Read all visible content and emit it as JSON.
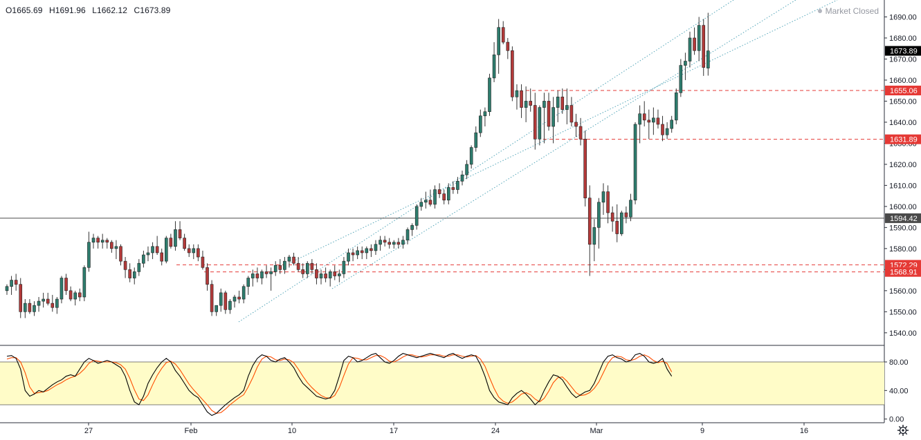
{
  "header": {
    "open": "O1665.69",
    "high": "H1691.96",
    "low": "L1662.12",
    "close": "C1673.89",
    "status": "Market Closed"
  },
  "colors": {
    "up": "#26a69a",
    "down": "#ef5350",
    "body_up": "#2e7d6e",
    "body_down": "#b33a3a",
    "level_line": "#e53935",
    "channel": "#3f9bb0",
    "stoch_k": "#000000",
    "stoch_d": "#ff4d00",
    "stoch_band": "#fffcc8",
    "last_price_tag": "#000000",
    "level_tag": "#e53935",
    "hline_tag": "#4a4a4a"
  },
  "price_axis": {
    "ticks": [
      "1540.00",
      "1550.00",
      "1560.00",
      "1570.00",
      "1580.00",
      "1590.00",
      "1600.00",
      "1610.00",
      "1620.00",
      "1630.00",
      "1640.00",
      "1650.00",
      "1660.00",
      "1670.00",
      "1680.00",
      "1690.00",
      "1700.00"
    ],
    "range": [
      1536,
      1700
    ]
  },
  "stoch_axis": {
    "ticks": [
      "0.00",
      "40.00",
      "80.00"
    ],
    "range": [
      0,
      100
    ],
    "band": [
      20,
      80
    ]
  },
  "time_axis": {
    "labels": [
      "27",
      "Feb",
      "10",
      "17",
      "24",
      "Mar",
      "9",
      "16"
    ]
  },
  "price_tags": {
    "last": "1673.89",
    "level_1655": "1655.06",
    "level_1631": "1631.89",
    "hline": "1594.42",
    "level_1572": "1572.29",
    "level_1568": "1568.91"
  },
  "chart_data": {
    "type": "candlestick",
    "description_series": "Daily OHLC with Stochastic oscillator",
    "levels": [
      {
        "price": 1655.06,
        "style": "dashed"
      },
      {
        "price": 1631.89,
        "style": "dashed"
      },
      {
        "price": 1594.42,
        "style": "solid"
      },
      {
        "price": 1572.29,
        "style": "dashed"
      },
      {
        "price": 1568.91,
        "style": "dashed"
      }
    ],
    "candles": [
      [
        1560,
        1563,
        1558,
        1562
      ],
      [
        1562,
        1567,
        1558,
        1565
      ],
      [
        1565,
        1568,
        1560,
        1563
      ],
      [
        1563,
        1566,
        1547,
        1550
      ],
      [
        1550,
        1556,
        1547,
        1554
      ],
      [
        1554,
        1556,
        1549,
        1550
      ],
      [
        1550,
        1555,
        1548,
        1553
      ],
      [
        1553,
        1557,
        1550,
        1555
      ],
      [
        1555,
        1559,
        1552,
        1556
      ],
      [
        1556,
        1559,
        1553,
        1554
      ],
      [
        1554,
        1558,
        1550,
        1552
      ],
      [
        1552,
        1557,
        1549,
        1556
      ],
      [
        1556,
        1567,
        1554,
        1566
      ],
      [
        1566,
        1568,
        1558,
        1560
      ],
      [
        1560,
        1562,
        1555,
        1556
      ],
      [
        1556,
        1560,
        1553,
        1559
      ],
      [
        1559,
        1561,
        1555,
        1557
      ],
      [
        1557,
        1572,
        1555,
        1571
      ],
      [
        1571,
        1588,
        1569,
        1583
      ],
      [
        1583,
        1587,
        1580,
        1585
      ],
      [
        1585,
        1586,
        1580,
        1583
      ],
      [
        1583,
        1587,
        1580,
        1584
      ],
      [
        1584,
        1585,
        1580,
        1583
      ],
      [
        1583,
        1584,
        1578,
        1580
      ],
      [
        1580,
        1584,
        1575,
        1581
      ],
      [
        1581,
        1582,
        1572,
        1574
      ],
      [
        1574,
        1576,
        1566,
        1570
      ],
      [
        1570,
        1573,
        1564,
        1566
      ],
      [
        1566,
        1571,
        1563,
        1569
      ],
      [
        1569,
        1575,
        1567,
        1573
      ],
      [
        1573,
        1579,
        1571,
        1577
      ],
      [
        1577,
        1581,
        1574,
        1578
      ],
      [
        1578,
        1583,
        1575,
        1581
      ],
      [
        1581,
        1586,
        1577,
        1578
      ],
      [
        1578,
        1580,
        1572,
        1574
      ],
      [
        1574,
        1586,
        1573,
        1585
      ],
      [
        1585,
        1587,
        1580,
        1581
      ],
      [
        1581,
        1593,
        1579,
        1589
      ],
      [
        1589,
        1593,
        1584,
        1585
      ],
      [
        1585,
        1587,
        1579,
        1580
      ],
      [
        1580,
        1582,
        1576,
        1578
      ],
      [
        1578,
        1582,
        1575,
        1580
      ],
      [
        1580,
        1582,
        1574,
        1576
      ],
      [
        1576,
        1579,
        1570,
        1571
      ],
      [
        1571,
        1573,
        1560,
        1563
      ],
      [
        1563,
        1565,
        1548,
        1550
      ],
      [
        1550,
        1553,
        1548,
        1553
      ],
      [
        1553,
        1561,
        1550,
        1559
      ],
      [
        1559,
        1560,
        1549,
        1551
      ],
      [
        1551,
        1556,
        1549,
        1555
      ],
      [
        1555,
        1558,
        1552,
        1557
      ],
      [
        1557,
        1560,
        1554,
        1556
      ],
      [
        1556,
        1563,
        1554,
        1562
      ],
      [
        1562,
        1567,
        1558,
        1566
      ],
      [
        1566,
        1570,
        1562,
        1568
      ],
      [
        1568,
        1571,
        1564,
        1566
      ],
      [
        1566,
        1570,
        1563,
        1569
      ],
      [
        1569,
        1572,
        1566,
        1568
      ],
      [
        1568,
        1571,
        1560,
        1569
      ],
      [
        1569,
        1574,
        1567,
        1572
      ],
      [
        1572,
        1575,
        1568,
        1570
      ],
      [
        1570,
        1576,
        1568,
        1574
      ],
      [
        1574,
        1577,
        1571,
        1576
      ],
      [
        1576,
        1578,
        1572,
        1573
      ],
      [
        1573,
        1576,
        1569,
        1570
      ],
      [
        1570,
        1573,
        1566,
        1568
      ],
      [
        1568,
        1574,
        1566,
        1573
      ],
      [
        1573,
        1575,
        1568,
        1570
      ],
      [
        1570,
        1573,
        1563,
        1566
      ],
      [
        1566,
        1570,
        1563,
        1568
      ],
      [
        1568,
        1571,
        1564,
        1566
      ],
      [
        1566,
        1570,
        1562,
        1569
      ],
      [
        1569,
        1572,
        1565,
        1567
      ],
      [
        1567,
        1570,
        1564,
        1568
      ],
      [
        1568,
        1576,
        1566,
        1574
      ],
      [
        1574,
        1580,
        1572,
        1578
      ],
      [
        1578,
        1580,
        1574,
        1577
      ],
      [
        1577,
        1581,
        1575,
        1579
      ],
      [
        1579,
        1581,
        1575,
        1578
      ],
      [
        1578,
        1581,
        1575,
        1580
      ],
      [
        1580,
        1582,
        1576,
        1579
      ],
      [
        1579,
        1584,
        1577,
        1582
      ],
      [
        1582,
        1586,
        1579,
        1584
      ],
      [
        1584,
        1586,
        1581,
        1583
      ],
      [
        1583,
        1585,
        1580,
        1582
      ],
      [
        1582,
        1584,
        1580,
        1583
      ],
      [
        1583,
        1585,
        1580,
        1582
      ],
      [
        1582,
        1586,
        1580,
        1584
      ],
      [
        1584,
        1590,
        1582,
        1589
      ],
      [
        1589,
        1592,
        1586,
        1591
      ],
      [
        1591,
        1601,
        1589,
        1600
      ],
      [
        1600,
        1604,
        1598,
        1602
      ],
      [
        1602,
        1607,
        1599,
        1603
      ],
      [
        1603,
        1608,
        1600,
        1601
      ],
      [
        1601,
        1610,
        1599,
        1608
      ],
      [
        1608,
        1611,
        1604,
        1606
      ],
      [
        1606,
        1608,
        1601,
        1603
      ],
      [
        1603,
        1611,
        1601,
        1609
      ],
      [
        1609,
        1612,
        1606,
        1608
      ],
      [
        1608,
        1614,
        1606,
        1612
      ],
      [
        1612,
        1617,
        1610,
        1615
      ],
      [
        1615,
        1622,
        1613,
        1620
      ],
      [
        1620,
        1629,
        1618,
        1628
      ],
      [
        1628,
        1638,
        1626,
        1635
      ],
      [
        1635,
        1646,
        1633,
        1643
      ],
      [
        1643,
        1647,
        1638,
        1645
      ],
      [
        1645,
        1663,
        1643,
        1661
      ],
      [
        1661,
        1678,
        1659,
        1672
      ],
      [
        1672,
        1689,
        1663,
        1685
      ],
      [
        1685,
        1688,
        1677,
        1678
      ],
      [
        1678,
        1680,
        1670,
        1674
      ],
      [
        1674,
        1676,
        1650,
        1652
      ],
      [
        1652,
        1658,
        1646,
        1655
      ],
      [
        1655,
        1658,
        1642,
        1647
      ],
      [
        1647,
        1657,
        1640,
        1650
      ],
      [
        1650,
        1656,
        1645,
        1648
      ],
      [
        1648,
        1654,
        1627,
        1632
      ],
      [
        1632,
        1648,
        1629,
        1647
      ],
      [
        1647,
        1654,
        1630,
        1650
      ],
      [
        1650,
        1654,
        1636,
        1638
      ],
      [
        1638,
        1652,
        1630,
        1647
      ],
      [
        1647,
        1655,
        1640,
        1652
      ],
      [
        1652,
        1656,
        1644,
        1646
      ],
      [
        1646,
        1656,
        1639,
        1648
      ],
      [
        1648,
        1652,
        1638,
        1640
      ],
      [
        1640,
        1644,
        1633,
        1638
      ],
      [
        1638,
        1642,
        1629,
        1632
      ],
      [
        1632,
        1636,
        1600,
        1604
      ],
      [
        1604,
        1610,
        1567,
        1582
      ],
      [
        1582,
        1594,
        1574,
        1590
      ],
      [
        1590,
        1604,
        1580,
        1602
      ],
      [
        1602,
        1611,
        1596,
        1607
      ],
      [
        1607,
        1610,
        1592,
        1597
      ],
      [
        1597,
        1600,
        1588,
        1593
      ],
      [
        1593,
        1601,
        1583,
        1587
      ],
      [
        1587,
        1598,
        1586,
        1597
      ],
      [
        1597,
        1600,
        1592,
        1595
      ],
      [
        1595,
        1606,
        1593,
        1603
      ],
      [
        1603,
        1640,
        1601,
        1639
      ],
      [
        1639,
        1648,
        1630,
        1644
      ],
      [
        1644,
        1650,
        1638,
        1641
      ],
      [
        1641,
        1646,
        1632,
        1640
      ],
      [
        1640,
        1647,
        1634,
        1642
      ],
      [
        1642,
        1646,
        1637,
        1639
      ],
      [
        1639,
        1643,
        1631,
        1634
      ],
      [
        1634,
        1640,
        1632,
        1637
      ],
      [
        1637,
        1643,
        1635,
        1641
      ],
      [
        1641,
        1656,
        1639,
        1654
      ],
      [
        1654,
        1670,
        1652,
        1667
      ],
      [
        1667,
        1673,
        1660,
        1669
      ],
      [
        1669,
        1683,
        1666,
        1680
      ],
      [
        1680,
        1685,
        1672,
        1674
      ],
      [
        1674,
        1690,
        1669,
        1686
      ],
      [
        1686,
        1689,
        1662,
        1666
      ],
      [
        1665.69,
        1691.96,
        1662.12,
        1673.89
      ]
    ],
    "stochastic": {
      "k": [
        88,
        89,
        85,
        70,
        40,
        32,
        35,
        40,
        38,
        43,
        48,
        52,
        55,
        60,
        62,
        60,
        70,
        80,
        85,
        82,
        78,
        80,
        82,
        80,
        76,
        72,
        60,
        40,
        24,
        20,
        32,
        50,
        62,
        72,
        80,
        85,
        80,
        68,
        60,
        50,
        40,
        34,
        30,
        20,
        10,
        5,
        8,
        14,
        20,
        25,
        30,
        34,
        40,
        60,
        75,
        85,
        90,
        88,
        82,
        80,
        84,
        86,
        80,
        72,
        60,
        50,
        44,
        38,
        32,
        30,
        28,
        30,
        40,
        60,
        82,
        88,
        86,
        80,
        82,
        86,
        90,
        92,
        86,
        80,
        78,
        82,
        88,
        92,
        90,
        88,
        86,
        88,
        90,
        92,
        90,
        88,
        86,
        90,
        92,
        88,
        85,
        88,
        90,
        88,
        76,
        60,
        40,
        30,
        24,
        22,
        20,
        30,
        36,
        40,
        35,
        28,
        20,
        26,
        40,
        52,
        62,
        60,
        55,
        45,
        36,
        30,
        34,
        38,
        40,
        50,
        65,
        80,
        88,
        90,
        86,
        84,
        80,
        82,
        90,
        92,
        88,
        80,
        78,
        80,
        85,
        70,
        60
      ],
      "d": [
        84,
        86,
        86,
        80,
        65,
        45,
        36,
        37,
        38,
        40,
        44,
        48,
        51,
        55,
        58,
        60,
        64,
        70,
        78,
        82,
        81,
        80,
        80,
        80,
        79,
        76,
        70,
        57,
        41,
        28,
        26,
        34,
        48,
        61,
        71,
        79,
        81,
        77,
        69,
        59,
        49,
        41,
        34,
        27,
        20,
        12,
        8,
        9,
        14,
        20,
        25,
        30,
        34,
        45,
        58,
        73,
        84,
        88,
        87,
        83,
        82,
        84,
        83,
        79,
        70,
        60,
        51,
        44,
        38,
        33,
        30,
        29,
        33,
        44,
        61,
        77,
        86,
        85,
        83,
        83,
        86,
        89,
        89,
        86,
        81,
        80,
        83,
        87,
        90,
        90,
        88,
        87,
        88,
        90,
        90,
        90,
        88,
        88,
        90,
        90,
        88,
        87,
        88,
        89,
        84,
        74,
        58,
        43,
        31,
        25,
        22,
        24,
        29,
        35,
        37,
        34,
        28,
        24,
        29,
        39,
        51,
        58,
        59,
        53,
        45,
        37,
        33,
        34,
        37,
        43,
        52,
        65,
        78,
        86,
        88,
        87,
        83,
        82,
        84,
        88,
        90,
        87,
        82,
        79,
        81,
        78,
        66
      ]
    }
  }
}
